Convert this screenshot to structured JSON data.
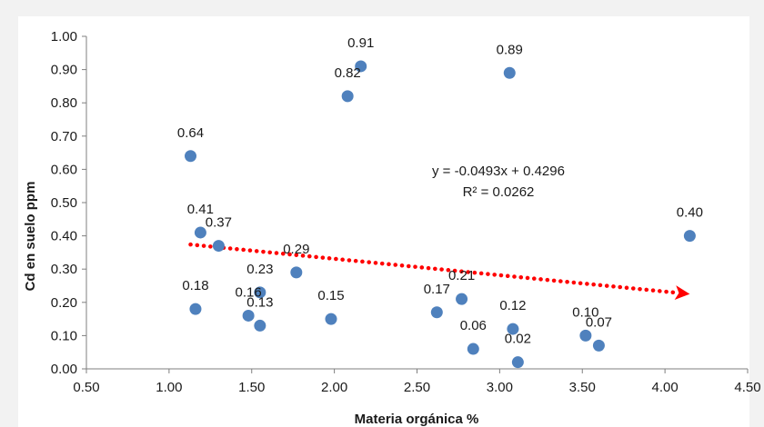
{
  "chart_data": {
    "type": "scatter",
    "title": "",
    "xlabel": "Materia orgánica %",
    "ylabel": "Cd en suelo ppm",
    "xlim": [
      0.5,
      4.5
    ],
    "ylim": [
      0.0,
      1.0
    ],
    "xticks": [
      "0.50",
      "1.00",
      "1.50",
      "2.00",
      "2.50",
      "3.00",
      "3.50",
      "4.00",
      "4.50"
    ],
    "yticks": [
      "0.00",
      "0.10",
      "0.20",
      "0.30",
      "0.40",
      "0.50",
      "0.60",
      "0.70",
      "0.80",
      "0.90",
      "1.00"
    ],
    "point_color": "#4f81bd",
    "trend_color": "#ff0000",
    "grid": false,
    "points": [
      {
        "x": 1.13,
        "y": 0.64,
        "label": "0.64"
      },
      {
        "x": 1.19,
        "y": 0.41,
        "label": "0.41"
      },
      {
        "x": 1.3,
        "y": 0.37,
        "label": "0.37"
      },
      {
        "x": 1.16,
        "y": 0.18,
        "label": "0.18"
      },
      {
        "x": 1.55,
        "y": 0.23,
        "label": "0.23"
      },
      {
        "x": 1.48,
        "y": 0.16,
        "label": "0.16"
      },
      {
        "x": 1.55,
        "y": 0.13,
        "label": "0.13"
      },
      {
        "x": 1.77,
        "y": 0.29,
        "label": "0.29"
      },
      {
        "x": 1.98,
        "y": 0.15,
        "label": "0.15"
      },
      {
        "x": 2.08,
        "y": 0.82,
        "label": "0.82"
      },
      {
        "x": 2.16,
        "y": 0.91,
        "label": "0.91"
      },
      {
        "x": 2.62,
        "y": 0.17,
        "label": "0.17"
      },
      {
        "x": 2.77,
        "y": 0.21,
        "label": "0.21"
      },
      {
        "x": 2.84,
        "y": 0.06,
        "label": "0.06"
      },
      {
        "x": 3.06,
        "y": 0.89,
        "label": "0.89"
      },
      {
        "x": 3.08,
        "y": 0.12,
        "label": "0.12"
      },
      {
        "x": 3.11,
        "y": 0.02,
        "label": "0.02"
      },
      {
        "x": 3.52,
        "y": 0.1,
        "label": "0.10"
      },
      {
        "x": 3.6,
        "y": 0.07,
        "label": "0.07"
      },
      {
        "x": 4.15,
        "y": 0.4,
        "label": "0.40"
      }
    ],
    "trendline": {
      "slope": -0.0493,
      "intercept": 0.4296,
      "x_range": [
        1.13,
        4.15
      ],
      "equation": "y = -0.0493x + 0.4296",
      "r_squared": "R² = 0.0262"
    }
  }
}
